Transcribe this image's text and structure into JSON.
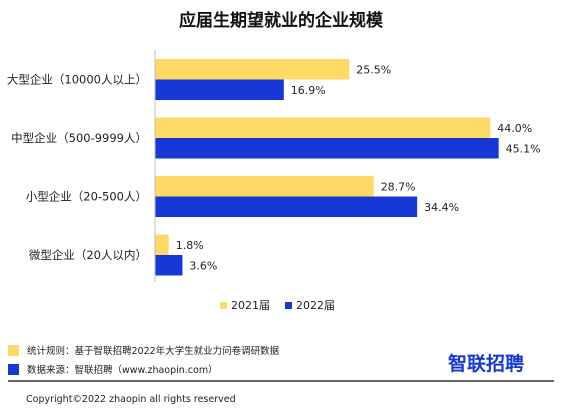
{
  "chart_data": {
    "type": "bar",
    "orientation": "horizontal",
    "title": "应届生期望就业的企业规模",
    "categories": [
      "大型企业（10000人以上）",
      "中型企业（500-9999人）",
      "小型企业（20-500人）",
      "微型企业（20人以内）"
    ],
    "series": [
      {
        "name": "2021届",
        "color": "#ffd966",
        "values": [
          25.5,
          44.0,
          28.7,
          1.8
        ],
        "labels": [
          "25.5%",
          "44.0%",
          "28.7%",
          "1.8%"
        ]
      },
      {
        "name": "2022届",
        "color": "#1538d6",
        "values": [
          16.9,
          45.1,
          34.4,
          3.6
        ],
        "labels": [
          "16.9%",
          "45.1%",
          "34.4%",
          "3.6%"
        ]
      }
    ],
    "xlim": [
      0,
      50
    ],
    "grid": false,
    "legend": "bottom"
  },
  "footer": {
    "notes": [
      {
        "color": "#ffd966",
        "text": "统计规则：基于智联招聘2022年大学生就业力问卷调研数据"
      },
      {
        "color": "#1538d6",
        "text": "数据来源：智联招聘（www.zhaopin.com）"
      }
    ],
    "logo": "智联招聘",
    "copyright": "Copyright©2022 zhaopin all rights reserved"
  }
}
